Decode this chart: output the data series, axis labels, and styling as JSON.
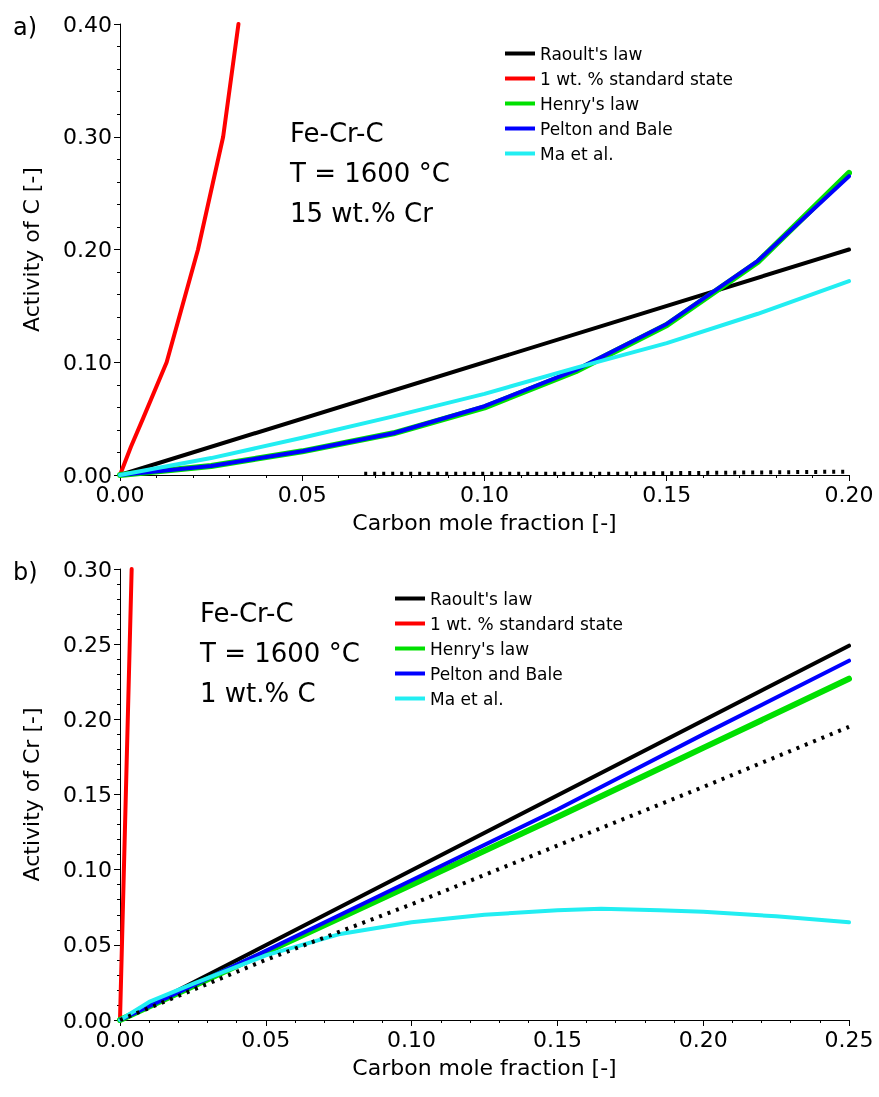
{
  "chart_data": [
    {
      "type": "line",
      "title": "a)",
      "xlabel": "Carbon mole fraction [-]",
      "ylabel": "Activity of C [-]",
      "annotations": [
        "Fe-Cr-C",
        "T = 1600 °C",
        "15 wt.% Cr"
      ],
      "xlim": [
        0,
        0.2
      ],
      "ylim": [
        0,
        0.4
      ],
      "xticks": [
        {
          "value": 0,
          "label": "0.00"
        },
        {
          "value": 0.05,
          "label": "0.05"
        },
        {
          "value": 0.1,
          "label": "0.10"
        },
        {
          "value": 0.15,
          "label": "0.15"
        },
        {
          "value": 0.2,
          "label": "0.20"
        }
      ],
      "yticks": [
        {
          "value": 0,
          "label": "0.00"
        },
        {
          "value": 0.1,
          "label": "0.10"
        },
        {
          "value": 0.2,
          "label": "0.20"
        },
        {
          "value": 0.3,
          "label": "0.30"
        },
        {
          "value": 0.4,
          "label": "0.40"
        }
      ],
      "grid": false,
      "legend": "top right",
      "marker": "none",
      "line_style": "solid",
      "series": [
        {
          "name": "Raoult's law",
          "color": "#000000",
          "x": [
            0,
            0.2
          ],
          "values": [
            0,
            0.2
          ]
        },
        {
          "name": "1 wt. % standard state",
          "color": "#ff0000",
          "x": [
            0,
            0.003,
            0.0063,
            0.0128,
            0.0214,
            0.0283,
            0.0325
          ],
          "values": [
            0,
            0.025,
            0.05,
            0.1,
            0.2,
            0.3,
            0.4
          ]
        },
        {
          "name": "Henry's law",
          "color": "#00e000",
          "x": [
            0,
            0.025,
            0.05,
            0.075,
            0.1,
            0.125,
            0.15,
            0.175,
            0.2
          ],
          "values": [
            0,
            0.008,
            0.021,
            0.037,
            0.06,
            0.092,
            0.133,
            0.189,
            0.268
          ]
        },
        {
          "name": "Pelton and Bale",
          "color": "#0000ff",
          "x": [
            0,
            0.025,
            0.05,
            0.075,
            0.1,
            0.125,
            0.15,
            0.175,
            0.2
          ],
          "values": [
            0,
            0.008,
            0.021,
            0.037,
            0.061,
            0.093,
            0.134,
            0.19,
            0.265
          ]
        },
        {
          "name": "Ma et al.",
          "color": "#22eef2",
          "x": [
            0,
            0.025,
            0.05,
            0.075,
            0.1,
            0.125,
            0.15,
            0.175,
            0.2
          ],
          "values": [
            0,
            0.015,
            0.033,
            0.052,
            0.072,
            0.095,
            0.117,
            0.143,
            0.172
          ]
        },
        {
          "color": "#000000",
          "line_style": "dotted",
          "x": [
            0.067,
            0.13,
            0.2
          ],
          "values": [
            0.001,
            0.001,
            0.003
          ]
        }
      ]
    },
    {
      "type": "line",
      "title": "b)",
      "xlabel": "Carbon mole fraction [-]",
      "ylabel": "Activity of Cr [-]",
      "annotations": [
        "Fe-Cr-C",
        "T = 1600 °C",
        "1 wt.% C"
      ],
      "xlim": [
        0,
        0.25
      ],
      "ylim": [
        0,
        0.3
      ],
      "xticks": [
        {
          "value": 0,
          "label": "0.00"
        },
        {
          "value": 0.05,
          "label": "0.05"
        },
        {
          "value": 0.1,
          "label": "0.10"
        },
        {
          "value": 0.15,
          "label": "0.15"
        },
        {
          "value": 0.2,
          "label": "0.20"
        },
        {
          "value": 0.25,
          "label": "0.25"
        }
      ],
      "yticks": [
        {
          "value": 0,
          "label": "0.00"
        },
        {
          "value": 0.05,
          "label": "0.05"
        },
        {
          "value": 0.1,
          "label": "0.10"
        },
        {
          "value": 0.15,
          "label": "0.15"
        },
        {
          "value": 0.2,
          "label": "0.20"
        },
        {
          "value": 0.25,
          "label": "0.25"
        },
        {
          "value": 0.3,
          "label": "0.30"
        }
      ],
      "grid": false,
      "legend": "top right",
      "marker": "none",
      "line_style": "solid",
      "series": [
        {
          "name": "Raoult's law",
          "color": "#000000",
          "x": [
            0,
            0.25
          ],
          "values": [
            0,
            0.249
          ]
        },
        {
          "name": "1 wt. % standard state",
          "color": "#ff0000",
          "x": [
            0,
            0.004
          ],
          "values": [
            0,
            0.3
          ]
        },
        {
          "name": "Henry's law",
          "color": "#00e000",
          "x": [
            0,
            0.05,
            0.1,
            0.15,
            0.2,
            0.25
          ],
          "values": [
            0,
            0.045,
            0.09,
            0.135,
            0.181,
            0.227
          ]
        },
        {
          "name": "Pelton and Bale",
          "color": "#0000ff",
          "x": [
            0,
            0.05,
            0.1,
            0.15,
            0.2,
            0.25
          ],
          "values": [
            0,
            0.046,
            0.093,
            0.14,
            0.19,
            0.239
          ]
        },
        {
          "name": "Ma et al.",
          "color": "#22eef2",
          "x": [
            0,
            0.01,
            0.025,
            0.05,
            0.075,
            0.1,
            0.125,
            0.15,
            0.165,
            0.185,
            0.2,
            0.225,
            0.25
          ],
          "values": [
            0,
            0.012,
            0.024,
            0.043,
            0.057,
            0.065,
            0.07,
            0.073,
            0.074,
            0.073,
            0.072,
            0.069,
            0.065
          ]
        },
        {
          "color": "#000000",
          "line_style": "dotted",
          "x": [
            0,
            0.05,
            0.1,
            0.15,
            0.2,
            0.25
          ],
          "values": [
            0,
            0.04,
            0.077,
            0.116,
            0.155,
            0.195
          ]
        }
      ]
    }
  ]
}
